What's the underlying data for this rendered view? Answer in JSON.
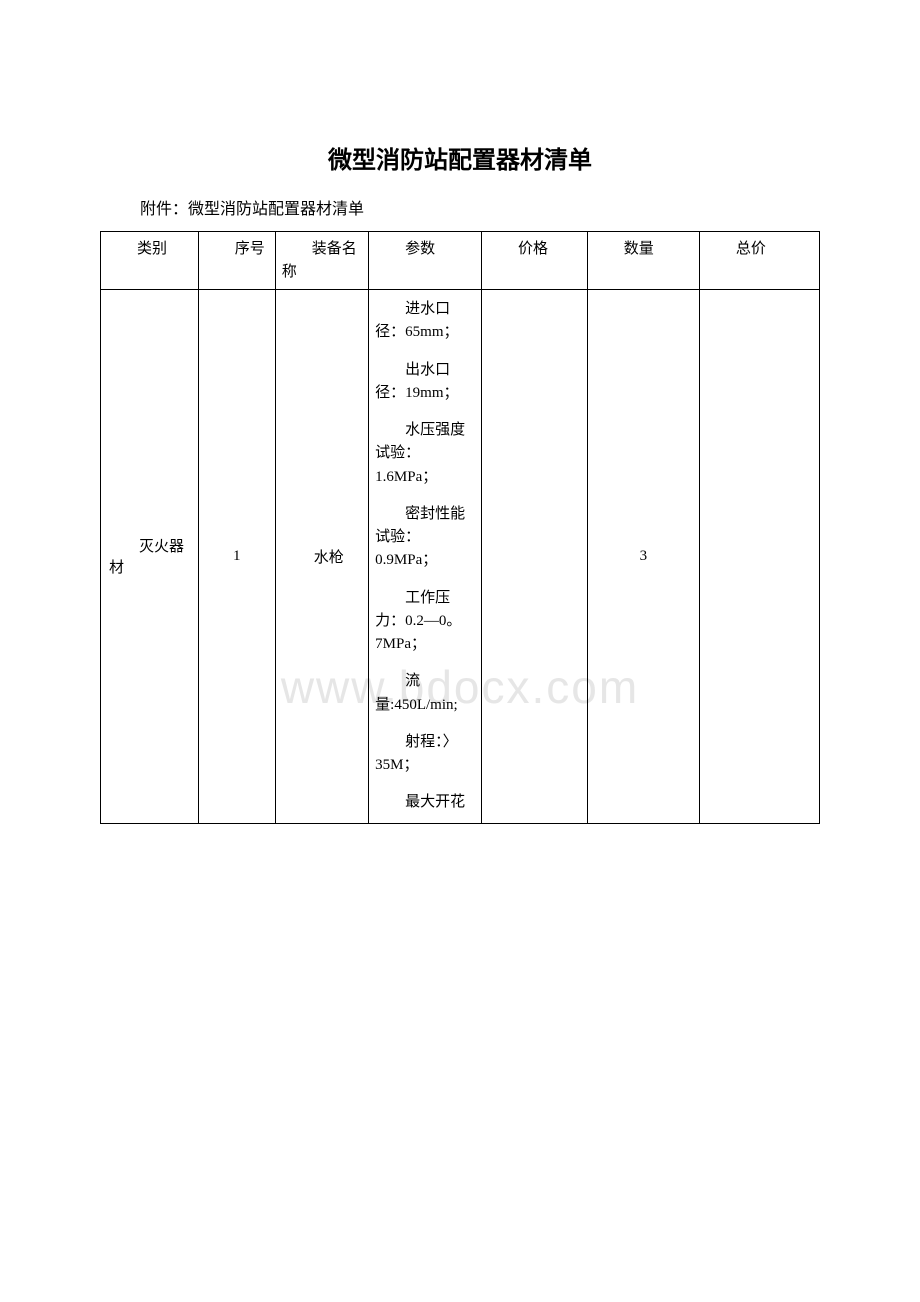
{
  "title": "微型消防站配置器材清单",
  "attachment_label": "附件：微型消防站配置器材清单",
  "watermark": "www.bdocx.com",
  "columns": {
    "category": "类别",
    "seq": "序号",
    "name": "装备名称",
    "params": "参数",
    "price": "价格",
    "qty": "数量",
    "total": "总价"
  },
  "row": {
    "category": "灭火器材",
    "seq": "1",
    "name": "水枪",
    "price": "",
    "qty": "3",
    "total": "",
    "params": [
      "进水口径：65mm；",
      "出水口径：19mm；",
      "水压强度试验：1.6MPa；",
      "密封性能试验：0.9MPa；",
      "工作压力：0.2—0。7MPa；",
      "流量:450L/min;",
      "射程：〉35M；",
      "最大开花"
    ]
  },
  "colors": {
    "text": "#000000",
    "border": "#000000",
    "background": "#ffffff",
    "watermark": "#e6e6e6"
  },
  "fontsize": {
    "title": 24,
    "body": 16,
    "cell": 15,
    "watermark": 46
  }
}
